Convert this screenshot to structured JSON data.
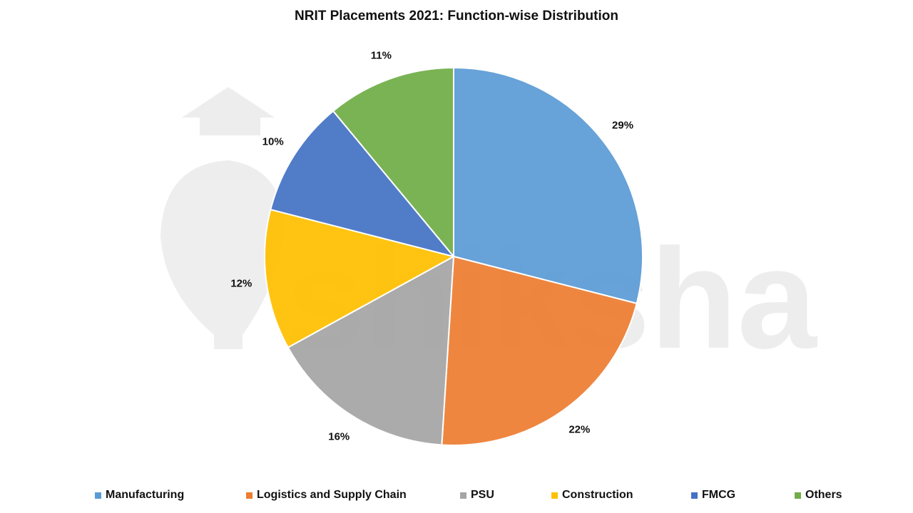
{
  "chart_data": {
    "type": "pie",
    "title": "NRIT Placements 2021: Function-wise Distribution",
    "categories": [
      "Manufacturing",
      "Logistics and Supply Chain",
      "PSU",
      "Construction",
      "FMCG",
      "Others"
    ],
    "values": [
      29,
      22,
      16,
      12,
      10,
      11
    ],
    "labels": [
      "29%",
      "22%",
      "16%",
      "12%",
      "10%",
      "11%"
    ],
    "colors": [
      "#5B9BD5",
      "#ED7D31",
      "#A5A5A5",
      "#FFC000",
      "#4472C4",
      "#70AD47"
    ],
    "unit": "%",
    "start_angle": "12 o'clock, clockwise",
    "legend_position": "bottom"
  },
  "legend": [
    {
      "label": "Manufacturing",
      "color": "#5B9BD5"
    },
    {
      "label": "Logistics and Supply Chain",
      "color": "#ED7D31"
    },
    {
      "label": "PSU",
      "color": "#A5A5A5"
    },
    {
      "label": "Construction",
      "color": "#FFC000"
    },
    {
      "label": "FMCG",
      "color": "#4472C4"
    },
    {
      "label": "Others",
      "color": "#70AD47"
    }
  ],
  "watermark": {
    "text": "shiksha"
  }
}
